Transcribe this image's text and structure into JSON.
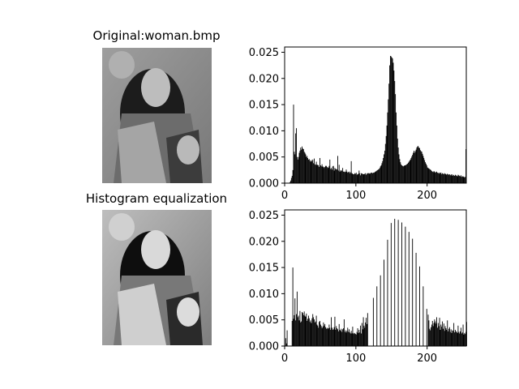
{
  "figure": {
    "top_left_title": "Original:woman.bmp",
    "bottom_left_title": "Histogram equalization"
  },
  "images": [
    {
      "name": "original-image",
      "description_token": "woman.bmp grayscale photo"
    },
    {
      "name": "equalized-image",
      "description_token": "woman.bmp equalized grayscale photo"
    }
  ],
  "colors": {
    "bars": "#000000",
    "axes": "#000000",
    "background": "#ffffff",
    "photo_gray": "#8c8c8c"
  },
  "chart_data": [
    {
      "type": "bar",
      "title": "",
      "xlabel": "",
      "ylabel": "",
      "xlim": [
        0,
        255
      ],
      "ylim": [
        0,
        0.026
      ],
      "xticks": [
        0,
        100,
        200
      ],
      "xtick_labels": [
        "0",
        "100",
        "200"
      ],
      "yticks": [
        0.0,
        0.005,
        0.01,
        0.015,
        0.02,
        0.025
      ],
      "ytick_labels": [
        "0.000",
        "0.005",
        "0.010",
        "0.015",
        "0.020",
        "0.025"
      ],
      "grid": false,
      "bins": 256,
      "values": [
        0,
        0,
        0,
        0,
        0,
        0,
        0,
        0.0002,
        0.0005,
        0.001,
        0.0014,
        0.0025,
        0.015,
        0.006,
        0.0055,
        0.0095,
        0.0105,
        0.005,
        0.0045,
        0.005,
        0.0058,
        0.0062,
        0.0068,
        0.0064,
        0.007,
        0.0066,
        0.0065,
        0.006,
        0.0058,
        0.0055,
        0.005,
        0.0052,
        0.0048,
        0.0045,
        0.0046,
        0.0043,
        0.0041,
        0.0044,
        0.0042,
        0.0045,
        0.0038,
        0.0047,
        0.0036,
        0.0035,
        0.0041,
        0.0035,
        0.0035,
        0.0034,
        0.0031,
        0.0048,
        0.0034,
        0.0032,
        0.0036,
        0.0032,
        0.0031,
        0.0029,
        0.0031,
        0.0033,
        0.0033,
        0.0031,
        0.0029,
        0.003,
        0.0033,
        0.0045,
        0.0027,
        0.0029,
        0.0026,
        0.0032,
        0.0033,
        0.0024,
        0.0029,
        0.0027,
        0.0027,
        0.0026,
        0.0052,
        0.0024,
        0.0035,
        0.0022,
        0.0024,
        0.0025,
        0.0023,
        0.0029,
        0.0022,
        0.0022,
        0.0021,
        0.0022,
        0.0026,
        0.0022,
        0.002,
        0.0021,
        0.0022,
        0.0019,
        0.0021,
        0.0042,
        0.0019,
        0.0018,
        0.0017,
        0.0017,
        0.0019,
        0.0018,
        0.002,
        0.0016,
        0.0017,
        0.0018,
        0.0024,
        0.0019,
        0.0015,
        0.0019,
        0.0018,
        0.0018,
        0.0017,
        0.0017,
        0.0018,
        0.0019,
        0.0016,
        0.0018,
        0.0019,
        0.0019,
        0.0019,
        0.0018,
        0.0019,
        0.002,
        0.002,
        0.0019,
        0.002,
        0.002,
        0.0021,
        0.0022,
        0.0023,
        0.0024,
        0.0025,
        0.0026,
        0.0027,
        0.0029,
        0.0032,
        0.0034,
        0.0038,
        0.0042,
        0.0048,
        0.0055,
        0.0062,
        0.0075,
        0.009,
        0.011,
        0.0135,
        0.016,
        0.019,
        0.0225,
        0.0243,
        0.0242,
        0.024,
        0.0238,
        0.023,
        0.0215,
        0.0195,
        0.017,
        0.0135,
        0.011,
        0.0085,
        0.0068,
        0.0055,
        0.0046,
        0.004,
        0.0036,
        0.0034,
        0.0033,
        0.0032,
        0.0033,
        0.0034,
        0.0034,
        0.0035,
        0.0036,
        0.0037,
        0.0039,
        0.0041,
        0.0043,
        0.0045,
        0.0048,
        0.0051,
        0.0054,
        0.0058,
        0.0062,
        0.0058,
        0.0061,
        0.0064,
        0.0068,
        0.007,
        0.0071,
        0.0068,
        0.0067,
        0.0063,
        0.0061,
        0.006,
        0.0056,
        0.0052,
        0.0048,
        0.0044,
        0.004,
        0.0037,
        0.0034,
        0.003,
        0.0029,
        0.0028,
        0.0027,
        0.0026,
        0.0025,
        0.0023,
        0.0022,
        0.0021,
        0.0023,
        0.0022,
        0.002,
        0.0021,
        0.0022,
        0.002,
        0.0019,
        0.002,
        0.0018,
        0.002,
        0.002,
        0.0017,
        0.0019,
        0.0018,
        0.0017,
        0.0019,
        0.0018,
        0.0017,
        0.0016,
        0.0018,
        0.0017,
        0.0016,
        0.0017,
        0.0015,
        0.0016,
        0.0017,
        0.0014,
        0.0016,
        0.0015,
        0.0014,
        0.0016,
        0.0015,
        0.0014,
        0.0013,
        0.0016,
        0.0015,
        0.0014,
        0.0013,
        0.0015,
        0.0012,
        0.0013,
        0.0013,
        0.0012,
        0.0011,
        0.0012,
        0.0065
      ]
    },
    {
      "type": "bar",
      "title": "",
      "xlabel": "",
      "ylabel": "",
      "xlim": [
        0,
        255
      ],
      "ylim": [
        0,
        0.026
      ],
      "xticks": [
        0,
        100,
        200
      ],
      "xtick_labels": [
        "0",
        "100",
        "200"
      ],
      "yticks": [
        0.0,
        0.005,
        0.01,
        0.015,
        0.02,
        0.025
      ],
      "ytick_labels": [
        "0.000",
        "0.005",
        "0.010",
        "0.015",
        "0.020",
        "0.025"
      ],
      "grid": false,
      "bins": 256,
      "values": [
        0,
        0.0015,
        0.0005,
        0.003,
        0,
        0,
        0,
        0,
        0,
        0,
        0.0048,
        0.015,
        0.0052,
        0.0059,
        0.0091,
        0.0049,
        0.0061,
        0.0104,
        0.0055,
        0.0058,
        0.0049,
        0.0067,
        0.0045,
        0.0047,
        0.0065,
        0.0063,
        0.0059,
        0.0066,
        0.0058,
        0.0056,
        0.0062,
        0.0048,
        0.0052,
        0.0058,
        0.0053,
        0.0046,
        0.0049,
        0.0044,
        0.0053,
        0.0061,
        0.0055,
        0.0051,
        0.0045,
        0.0047,
        0.0058,
        0.0041,
        0.0039,
        0.0035,
        0.0046,
        0.0048,
        0.0041,
        0.0038,
        0.0034,
        0.0037,
        0.0045,
        0.0039,
        0.0042,
        0.0036,
        0.0033,
        0.0035,
        0.0033,
        0.0034,
        0.0041,
        0.0035,
        0.0031,
        0.0055,
        0.0035,
        0.0031,
        0.0032,
        0.0036,
        0.0056,
        0.0031,
        0.0038,
        0.0034,
        0.0032,
        0.0028,
        0.0042,
        0.0031,
        0.0029,
        0.0033,
        0.0027,
        0.0032,
        0.0034,
        0.0051,
        0.0027,
        0.003,
        0.0026,
        0.0029,
        0.0035,
        0.0027,
        0.0032,
        0.0026,
        0.0024,
        0.0029,
        0.0024,
        0.0037,
        0.0025,
        0.0023,
        0.0025,
        0.0023,
        0.0022,
        0.0027,
        0.0034,
        0.0025,
        0.0031,
        0.0026,
        0.0039,
        0.0024,
        0.0044,
        0.0032,
        0.0055,
        0.0039,
        0.0035,
        0.0045,
        0.0054,
        0.0042,
        0.0063,
        0.0,
        0.0,
        0.0,
        0.0,
        0.0,
        0.0,
        0.0,
        0.0092,
        0.0,
        0.0,
        0.0,
        0.0,
        0.0114,
        0.0,
        0.0,
        0.0,
        0.0,
        0.0135,
        0.0,
        0.0,
        0.0,
        0.0,
        0.0165,
        0.0,
        0.0,
        0.0,
        0.0,
        0.0203,
        0.0,
        0.0,
        0.0,
        0.0,
        0.0235,
        0.0,
        0.0,
        0.0,
        0.0,
        0.0243,
        0.0,
        0.0,
        0.0,
        0.0,
        0.0241,
        0.0,
        0.0,
        0.0,
        0.0,
        0.0236,
        0.0,
        0.0,
        0.0,
        0.0,
        0.0228,
        0.0,
        0.0,
        0.0,
        0.0,
        0.0218,
        0.0,
        0.0,
        0.0,
        0.0,
        0.0205,
        0.0,
        0.0,
        0.0,
        0.0,
        0.0178,
        0.0,
        0.0,
        0.0,
        0.0,
        0.0152,
        0.0,
        0.0,
        0.0,
        0.0,
        0.0114,
        0.0,
        0.0,
        0.0,
        0.0,
        0.0071,
        0.0,
        0.006,
        0.0049,
        0.0033,
        0.003,
        0.0036,
        0.0041,
        0.0048,
        0.0038,
        0.0044,
        0.0051,
        0.0047,
        0.0043,
        0.0055,
        0.0035,
        0.0044,
        0.0038,
        0.0054,
        0.0031,
        0.0041,
        0.0037,
        0.0047,
        0.0033,
        0.0043,
        0.0029,
        0.0038,
        0.0034,
        0.0031,
        0.0049,
        0.0028,
        0.0033,
        0.0036,
        0.0027,
        0.0032,
        0.0025,
        0.003,
        0.0029,
        0.0044,
        0.0026,
        0.0031,
        0.0028,
        0.0027,
        0.0025,
        0.0039,
        0.0027,
        0.0024,
        0.0028,
        0.0035,
        0.0024,
        0.0026,
        0.0041,
        0.0022,
        0.0025,
        0.0023,
        0.0027,
        0.0046
      ]
    }
  ]
}
